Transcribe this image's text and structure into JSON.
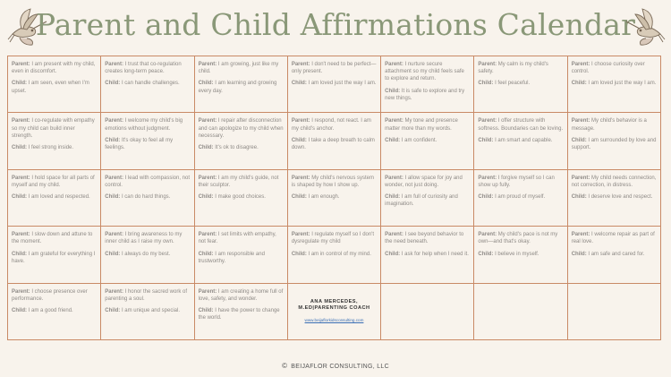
{
  "title": "Parent and Child Affirmations Calendar",
  "labels": {
    "parent": "Parent:",
    "child": "Child:"
  },
  "cells": [
    {
      "parent": "I am present with my child, even in discomfort.",
      "child": "I am seen, even when I'm upset."
    },
    {
      "parent": "I trust that co-regulation creates long-term peace.",
      "child": "I can handle challenges."
    },
    {
      "parent": "I am growing, just like my child.",
      "child": "I am learning and growing every day."
    },
    {
      "parent": "I don't need to be perfect—only present.",
      "child": "I am loved just the way I am."
    },
    {
      "parent": "I nurture secure attachment so my child feels safe to explore and return.",
      "child": "It is safe to explore and try new things."
    },
    {
      "parent": "My calm is my child's safety.",
      "child": "I feel peaceful."
    },
    {
      "parent": "I choose curiosity over control.",
      "child": "I am loved just the way I am."
    },
    {
      "parent": "I co-regulate with empathy so my child can build inner strength.",
      "child": "I feel strong inside."
    },
    {
      "parent": "I welcome my child's big emotions without judgment.",
      "child": "It's okay to feel all my feelings."
    },
    {
      "parent": "I repair after disconnection and can apologize to my child when necessary.",
      "child": "It's ok to disagree."
    },
    {
      "parent": "I respond, not react. I am my child's anchor.",
      "child": "I take a deep breath to calm down."
    },
    {
      "parent": "My tone and presence matter more than my words.",
      "child": "I am confident."
    },
    {
      "parent": "I offer structure with softness. Boundaries can be loving.",
      "child": "I am smart and capable."
    },
    {
      "parent": "My child's behavior is a message.",
      "child": "I am surrounded by love and support."
    },
    {
      "parent": "I hold space for all parts of myself and my child.",
      "child": "I am loved and respected."
    },
    {
      "parent": "I lead with compassion, not control.",
      "child": "I can do hard things."
    },
    {
      "parent": "I am my child's guide, not their sculptor.",
      "child": "I make good choices."
    },
    {
      "parent": "My child's nervous system is shaped by how I show up.",
      "child": "I am enough."
    },
    {
      "parent": "I allow space for joy and wonder, not just doing.",
      "child": "I am full of curiosity and imagination."
    },
    {
      "parent": "I forgive myself so I can show up fully.",
      "child": "I  am proud of myself."
    },
    {
      "parent": "My child needs connection, not correction, in distress.",
      "child": "I deserve love and respect."
    },
    {
      "parent": "I slow down and attune to the moment.",
      "child": "I am grateful for everything I have."
    },
    {
      "parent": "I bring awareness to my inner child as I raise my own.",
      "child": "I always do my best."
    },
    {
      "parent": "I set limits with empathy, not fear.",
      "child": "I am responsible and trustworthy."
    },
    {
      "parent": "I regulate myself so I don't dysregulate my child",
      "child": "I am in control of my mind."
    },
    {
      "parent": "I see beyond behavior to the need beneath.",
      "child": "I ask for help when I need it."
    },
    {
      "parent": "My child's pace is not my own—and that's okay.",
      "child": "I believe in myself."
    },
    {
      "parent": "I welcome repair as part of real love.",
      "child": "I am safe and cared for."
    },
    {
      "parent": "I choose presence over performance.",
      "child": "I am a good friend."
    },
    {
      "parent": "I honor the sacred work of parenting a soul.",
      "child": "I am unique and special."
    },
    {
      "parent": "I am creating a home full of love, safety, and wonder.",
      "child": "I have the power to change the world."
    }
  ],
  "credit": {
    "name": "ANA MERCEDES, M.ED|PARENTING COACH",
    "url": "www.beijaflorkidsconsulting.com"
  },
  "footer": {
    "copyright": "©",
    "company": "BEIJAFLOR CONSULTING, LLC"
  },
  "colors": {
    "background": "#f8f3ec",
    "title": "#8a9878",
    "grid_line": "#c98a66",
    "text": "#8e8a86",
    "link": "#3a6fb5"
  },
  "icons": [
    "hummingbird-illustration-left",
    "hummingbird-illustration-right"
  ]
}
